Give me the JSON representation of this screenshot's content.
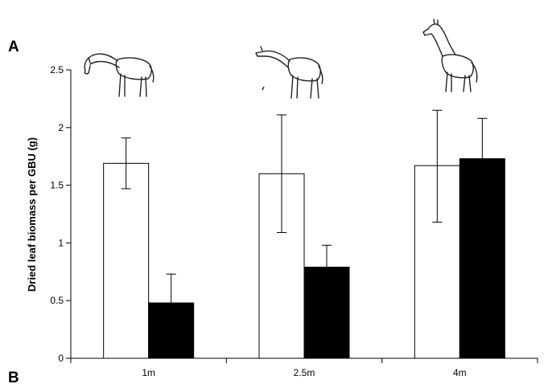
{
  "panel_labels": {
    "top": "A",
    "bottom": "B"
  },
  "chart_data": {
    "type": "bar",
    "categories": [
      "1m",
      "2.5m",
      "4m"
    ],
    "ylabel": "Dried leaf biomass per GBU (g)",
    "xlabel": "",
    "ylim": [
      0,
      2.5
    ],
    "yticks": [
      0,
      0.5,
      1,
      1.5,
      2,
      2.5
    ],
    "ytick_labels": [
      "0",
      "0.5",
      "1",
      "1.5",
      "2",
      "2.5"
    ],
    "grid": false,
    "series": [
      {
        "color": "#ffffff",
        "values": [
          1.69,
          1.6,
          1.67
        ],
        "err_low": [
          1.47,
          1.09,
          1.18
        ],
        "err_high": [
          1.91,
          2.11,
          2.15
        ]
      },
      {
        "color": "#000000",
        "values": [
          0.48,
          0.79,
          1.73
        ],
        "err_low": [
          0.48,
          0.79,
          1.73
        ],
        "err_high": [
          0.73,
          0.98,
          2.08
        ]
      }
    ],
    "icons": [
      "giraffe-browsing-low-icon",
      "giraffe-browsing-mid-icon",
      "giraffe-browsing-high-icon"
    ]
  }
}
